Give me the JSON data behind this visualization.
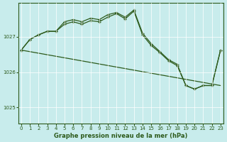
{
  "title": "Graphe pression niveau de la mer (hPa)",
  "bg_color": "#c8ecec",
  "line_color": "#2d5a1b",
  "grid_color": "#ffffff",
  "x_ticks": [
    0,
    1,
    2,
    3,
    4,
    5,
    6,
    7,
    8,
    9,
    10,
    11,
    12,
    13,
    14,
    15,
    16,
    17,
    18,
    19,
    20,
    21,
    22,
    23
  ],
  "y_ticks": [
    1025,
    1026,
    1027
  ],
  "ylim": [
    1024.55,
    1027.95
  ],
  "xlim": [
    -0.3,
    23.3
  ],
  "line_straight": [
    [
      0,
      1026.62
    ],
    [
      23,
      1025.62
    ]
  ],
  "line_jagged1": {
    "x": [
      0,
      1,
      2,
      3,
      4,
      5,
      6,
      7,
      8,
      9,
      10,
      11,
      12,
      13,
      14,
      15,
      16,
      17,
      18,
      19,
      20,
      21,
      22,
      23
    ],
    "y": [
      1026.62,
      1026.92,
      1027.05,
      1027.15,
      1027.15,
      1027.35,
      1027.42,
      1027.35,
      1027.45,
      1027.42,
      1027.55,
      1027.65,
      1027.5,
      1027.72,
      1027.05,
      1026.75,
      1026.55,
      1026.32,
      1026.18,
      1025.62,
      1025.52,
      1025.62,
      1025.62,
      1026.62
    ]
  },
  "line_jagged2": {
    "x": [
      0,
      1,
      2,
      3,
      4,
      5,
      6,
      7,
      8,
      9,
      10,
      11,
      12,
      13,
      14,
      15,
      16,
      17,
      18,
      19,
      20,
      21,
      22,
      23
    ],
    "y": [
      1026.62,
      1026.92,
      1027.05,
      1027.15,
      1027.15,
      1027.42,
      1027.48,
      1027.42,
      1027.52,
      1027.48,
      1027.62,
      1027.68,
      1027.55,
      1027.75,
      1027.1,
      1026.8,
      1026.58,
      1026.35,
      1026.22,
      1025.62,
      1025.52,
      1025.62,
      1025.62,
      1026.62
    ]
  }
}
